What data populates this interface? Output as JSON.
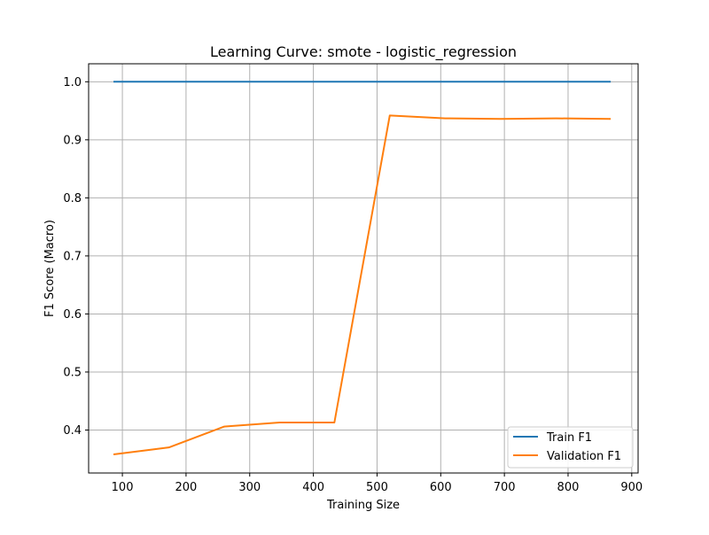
{
  "chart_data": {
    "type": "line",
    "title": "Learning Curve: smote - logistic_regression",
    "xlabel": "Training Size",
    "ylabel": "F1 Score (Macro)",
    "xlim": [
      47,
      910
    ],
    "ylim": [
      0.326,
      1.031
    ],
    "xticks": [
      100,
      200,
      300,
      400,
      500,
      600,
      700,
      800,
      900
    ],
    "yticks": [
      0.4,
      0.5,
      0.6,
      0.7,
      0.8,
      0.9,
      1.0
    ],
    "ytick_labels": [
      "0.4",
      "0.5",
      "0.6",
      "0.7",
      "0.8",
      "0.9",
      "1.0"
    ],
    "grid": true,
    "legend_position": "lower-right",
    "x": [
      86,
      173,
      260,
      347,
      433,
      520,
      607,
      694,
      781,
      867
    ],
    "series": [
      {
        "name": "Train F1",
        "color": "#1f77b4",
        "values": [
          1.0,
          1.0,
          1.0,
          1.0,
          1.0,
          1.0,
          1.0,
          1.0,
          1.0,
          1.0
        ]
      },
      {
        "name": "Validation F1",
        "color": "#ff7f0e",
        "values": [
          0.358,
          0.37,
          0.406,
          0.413,
          0.413,
          0.942,
          0.937,
          0.936,
          0.937,
          0.936
        ]
      }
    ]
  }
}
